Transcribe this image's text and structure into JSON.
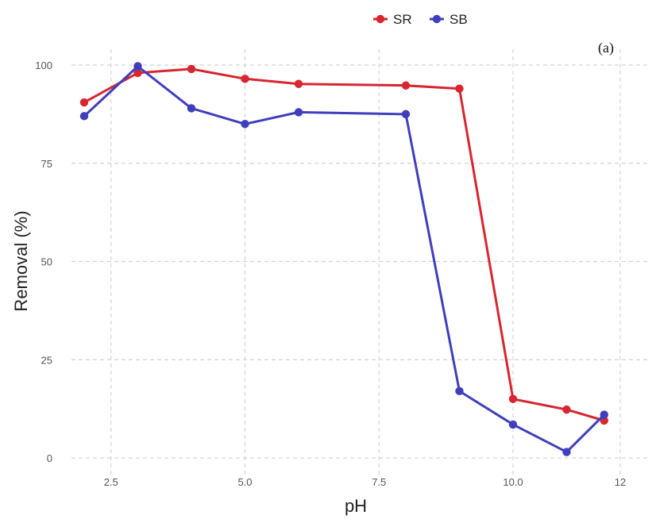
{
  "chart_data": {
    "type": "line",
    "panel_label": "(a)",
    "xlabel": "pH",
    "ylabel": "Removal (%)",
    "xlim": [
      2,
      12
    ],
    "ylim": [
      0,
      100
    ],
    "x_ticks": [
      2.5,
      5.0,
      7.5,
      10.0,
      12
    ],
    "x_tick_labels": [
      "2.5",
      "5.0",
      "7.5",
      "10.0",
      "12"
    ],
    "y_ticks": [
      0,
      25,
      50,
      75,
      100
    ],
    "y_tick_labels": [
      "0",
      "25",
      "50",
      "75",
      "100"
    ],
    "grid": true,
    "legend_position": "top",
    "series": [
      {
        "name": "SR",
        "color": "#d7262f",
        "x": [
          2,
          3,
          4,
          5,
          6,
          8,
          9,
          10,
          11,
          11.7
        ],
        "y": [
          90.5,
          98,
          99,
          96.5,
          95.2,
          94.8,
          94,
          15,
          12.3,
          9.5
        ]
      },
      {
        "name": "SB",
        "color": "#3f3fbd",
        "x": [
          2,
          3,
          4,
          5,
          6,
          8,
          9,
          10,
          11,
          11.7
        ],
        "y": [
          87,
          99.7,
          89,
          85,
          88,
          87.5,
          17,
          8.5,
          1.5,
          11
        ]
      }
    ]
  }
}
